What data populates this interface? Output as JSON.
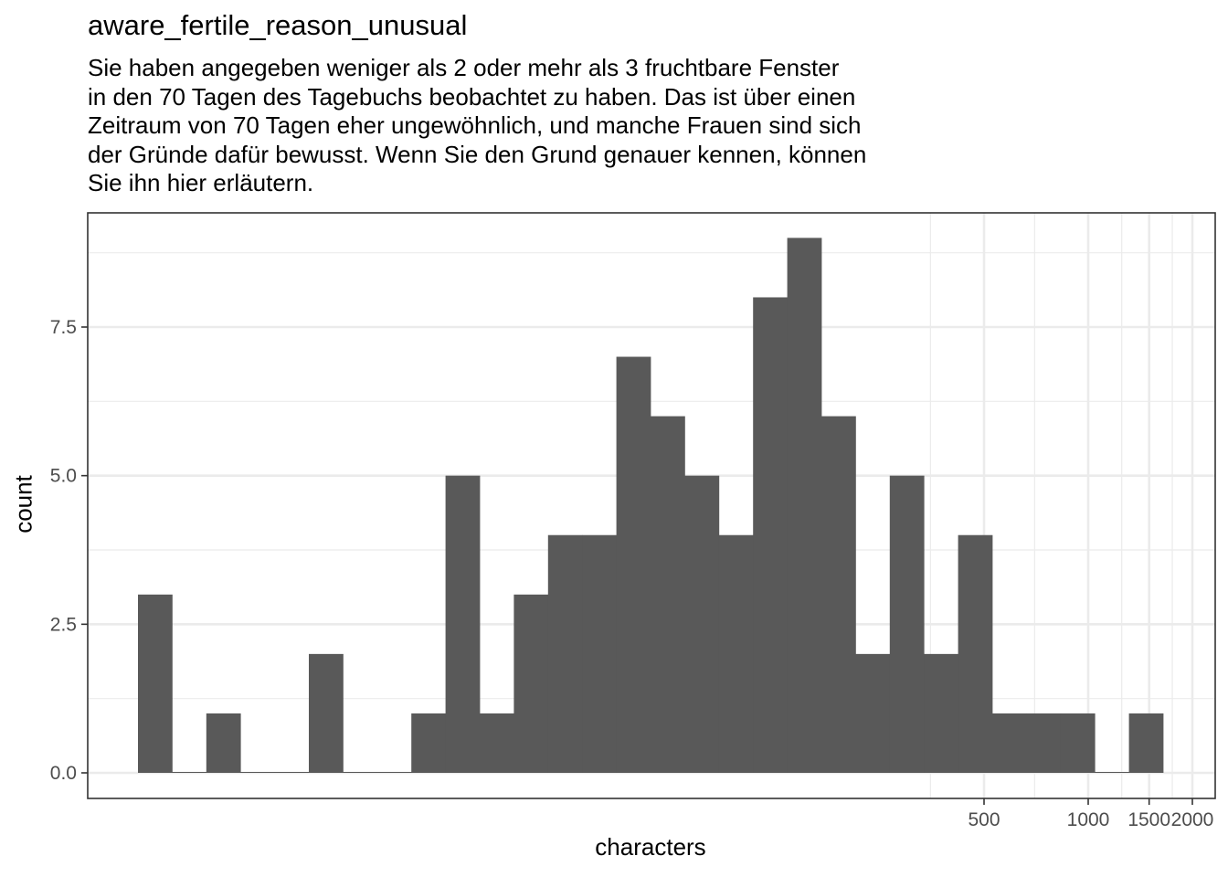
{
  "title": "aware_fertile_reason_unusual",
  "subtitle_lines": [
    "Sie haben angegeben weniger als 2 oder mehr als 3 fruchtbare Fenster",
    "in den 70 Tagen des Tagebuchs beobachtet zu haben. Das ist über einen",
    "Zeitraum von 70 Tagen eher ungewöhnlich, und manche Frauen sind sich",
    "der Gründe dafür bewusst. Wenn Sie den Grund genauer kennen, können",
    "Sie ihn hier erläutern."
  ],
  "colors": {
    "bar": "#595959",
    "grid": "#ebebeb",
    "panel_border": "#333333",
    "axis_text": "#4d4d4d"
  },
  "chart_data": {
    "type": "bar",
    "title": "aware_fertile_reason_unusual",
    "xlabel": "characters",
    "ylabel": "count",
    "x_scale": "log10",
    "x_ticks": [
      500,
      1000,
      1500,
      2000
    ],
    "x_tick_labels": [
      "500",
      "1000",
      "1500",
      "2000"
    ],
    "y_ticks": [
      0,
      2.5,
      5,
      7.5
    ],
    "y_tick_labels": [
      "0.0",
      "2.5",
      "5.0",
      "7.5"
    ],
    "ylim": [
      0,
      9.45
    ],
    "bin_count": 30,
    "values": [
      3,
      0,
      1,
      0,
      0,
      2,
      0,
      0,
      1,
      5,
      1,
      3,
      4,
      4,
      7,
      6,
      5,
      4,
      8,
      9,
      6,
      2,
      5,
      2,
      4,
      1,
      1,
      1,
      0,
      1
    ],
    "grid": true,
    "theme": "bw"
  }
}
